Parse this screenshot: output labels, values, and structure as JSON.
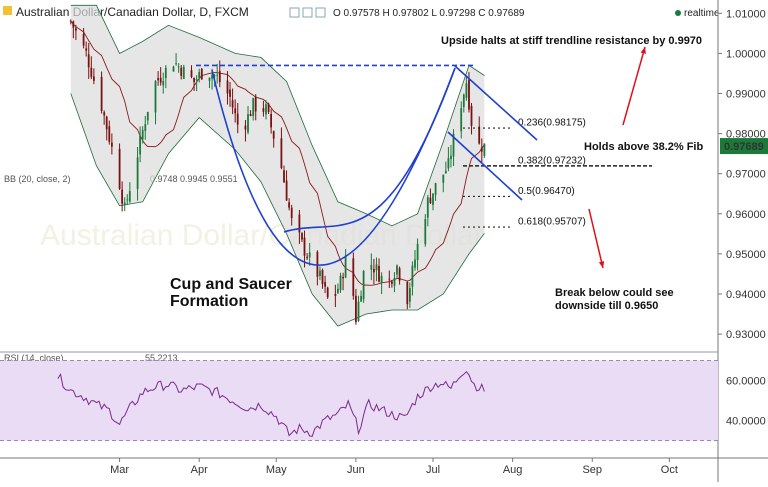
{
  "header": {
    "title": "Australian Dollar/Canadian Dollar, D, FXCM",
    "ohlc": "O 0.97578 H 0.97802 L 0.97298 C 0.97689",
    "realtime": "realtime"
  },
  "indicators": {
    "bb_label": "BB (20, close, 2)",
    "bb_values": "0.9748  0.9945  0.9551",
    "rsi_label": "RSI (14, close)",
    "rsi_value": "55.2213"
  },
  "colors": {
    "up": "#1b7a3a",
    "down": "#7a1010",
    "trend": "#1f3fd0",
    "annotation_arrow": "#e0101a",
    "rsi_line": "#7a2a8a",
    "rsi_band": "#eadcf5",
    "price_tag": "#1b7a3a"
  },
  "chart_data": {
    "type": "candlestick",
    "title": "Australian Dollar/Canadian Dollar, D, FXCM",
    "y_axis": {
      "ticks": [
        "1.01000",
        "1.00000",
        "0.99000",
        "0.98000",
        "0.97000",
        "0.96000",
        "0.95000",
        "0.94000",
        "0.93000"
      ],
      "ylim": [
        0.9275,
        1.0115
      ]
    },
    "x_axis": {
      "ticks": [
        "Mar",
        "Apr",
        "May",
        "Jun",
        "Jul",
        "Aug",
        "Sep",
        "Oct"
      ]
    },
    "last_price": "0.97689",
    "price_path": [
      [
        "Feb 10",
        1.008
      ],
      [
        "Feb 16",
        1.0
      ],
      [
        "Feb 22",
        0.987
      ],
      [
        "Feb 28",
        0.971
      ],
      [
        "Mar 3",
        0.961
      ],
      [
        "Mar 8",
        0.975
      ],
      [
        "Mar 14",
        0.992
      ],
      [
        "Mar 22",
        0.998
      ],
      [
        "Mar 30",
        0.993
      ],
      [
        "Apr 3",
        0.996
      ],
      [
        "Apr 8",
        0.994
      ],
      [
        "Apr 13",
        0.989
      ],
      [
        "Apr 17",
        0.98
      ],
      [
        "Apr 22",
        0.987
      ],
      [
        "Apr 27",
        0.986
      ],
      [
        "May 2",
        0.975
      ],
      [
        "May 7",
        0.958
      ],
      [
        "May 12",
        0.951
      ],
      [
        "May 18",
        0.944
      ],
      [
        "May 22",
        0.937
      ],
      [
        "May 26",
        0.943
      ],
      [
        "May 29",
        0.951
      ],
      [
        "Jun 1",
        0.934
      ],
      [
        "Jun 5",
        0.949
      ],
      [
        "Jun 9",
        0.946
      ],
      [
        "Jun 13",
        0.942
      ],
      [
        "Jun 17",
        0.947
      ],
      [
        "Jun 21",
        0.939
      ],
      [
        "Jun 25",
        0.952
      ],
      [
        "Jun 29",
        0.963
      ],
      [
        "Jul 3",
        0.968
      ],
      [
        "Jul 7",
        0.972
      ],
      [
        "Jul 11",
        0.985
      ],
      [
        "Jul 14",
        0.993
      ],
      [
        "Jul 16",
        0.983
      ],
      [
        "Jul 19",
        0.977
      ],
      [
        "Jul 21",
        0.9769
      ]
    ],
    "bollinger_bands": {
      "upper": [
        [
          "Feb 10",
          1.012
        ],
        [
          "Feb 20",
          1.012
        ],
        [
          "Mar 1",
          1.0
        ],
        [
          "Mar 10",
          1.003
        ],
        [
          "Mar 20",
          1.007
        ],
        [
          "Apr 1",
          1.004
        ],
        [
          "Apr 15",
          1.0
        ],
        [
          "Apr 25",
          0.999
        ],
        [
          "May 5",
          0.993
        ],
        [
          "May 15",
          0.977
        ],
        [
          "May 25",
          0.963
        ],
        [
          "Jun 5",
          0.96
        ],
        [
          "Jun 15",
          0.957
        ],
        [
          "Jun 25",
          0.96
        ],
        [
          "Jul 5",
          0.978
        ],
        [
          "Jul 15",
          0.997
        ],
        [
          "Jul 21",
          0.9945
        ]
      ],
      "lower": [
        [
          "Feb 10",
          0.99
        ],
        [
          "Feb 20",
          0.972
        ],
        [
          "Mar 1",
          0.962
        ],
        [
          "Mar 10",
          0.963
        ],
        [
          "Mar 20",
          0.975
        ],
        [
          "Apr 1",
          0.984
        ],
        [
          "Apr 15",
          0.976
        ],
        [
          "Apr 25",
          0.968
        ],
        [
          "May 5",
          0.955
        ],
        [
          "May 15",
          0.94
        ],
        [
          "May 25",
          0.932
        ],
        [
          "Jun 5",
          0.935
        ],
        [
          "Jun 15",
          0.936
        ],
        [
          "Jun 25",
          0.936
        ],
        [
          "Jul 5",
          0.94
        ],
        [
          "Jul 15",
          0.95
        ],
        [
          "Jul 21",
          0.9551
        ]
      ]
    },
    "fibonacci": [
      {
        "label": "0.236(0.98175)",
        "value": 0.98175
      },
      {
        "label": "0.382(0.97232)",
        "value": 0.97232
      },
      {
        "label": "0.5(0.96470)",
        "value": 0.9647
      },
      {
        "label": "0.618(0.95707)",
        "value": 0.95707
      }
    ],
    "resistance": {
      "value": 0.997
    },
    "rsi": {
      "ticks": [
        "60.0000",
        "40.0000"
      ],
      "last": 55.2213,
      "series": [
        [
          "Feb 5",
          62
        ],
        [
          "Feb 10",
          55
        ],
        [
          "Feb 15",
          52
        ],
        [
          "Feb 20",
          48
        ],
        [
          "Feb 25",
          45
        ],
        [
          "Mar 1",
          38
        ],
        [
          "Mar 5",
          46
        ],
        [
          "Mar 10",
          54
        ],
        [
          "Mar 15",
          57
        ],
        [
          "Mar 20",
          58
        ],
        [
          "Mar 25",
          55
        ],
        [
          "Apr 1",
          57
        ],
        [
          "Apr 8",
          54
        ],
        [
          "Apr 14",
          50
        ],
        [
          "Apr 20",
          46
        ],
        [
          "Apr 25",
          48
        ],
        [
          "May 1",
          42
        ],
        [
          "May 6",
          33
        ],
        [
          "May 10",
          36
        ],
        [
          "May 15",
          34
        ],
        [
          "May 20",
          40
        ],
        [
          "May 25",
          43
        ],
        [
          "May 29",
          48
        ],
        [
          "Jun 2",
          36
        ],
        [
          "Jun 6",
          48
        ],
        [
          "Jun 10",
          46
        ],
        [
          "Jun 15",
          43
        ],
        [
          "Jun 20",
          41
        ],
        [
          "Jun 25",
          52
        ],
        [
          "Jun 30",
          57
        ],
        [
          "Jul 4",
          59
        ],
        [
          "Jul 8",
          56
        ],
        [
          "Jul 12",
          64
        ],
        [
          "Jul 14",
          66
        ],
        [
          "Jul 17",
          58
        ],
        [
          "Jul 21",
          55.2
        ]
      ]
    }
  },
  "annotations": {
    "upside": "Upside halts at stiff trendline resistance by 0.9970",
    "holds": "Holds above 38.2% Fib",
    "break_line1": "Break below could see",
    "break_line2": "downside till 0.9650",
    "pattern_line1": "Cup and Saucer",
    "pattern_line2": "Formation"
  }
}
